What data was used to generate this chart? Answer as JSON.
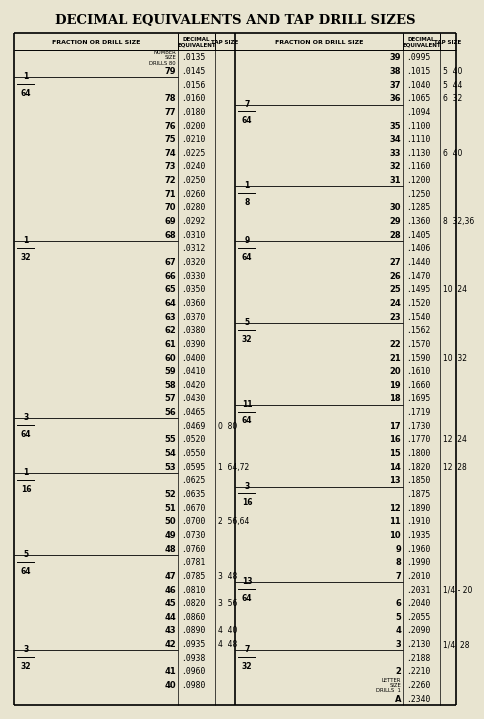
{
  "title": "DECIMAL EQUIVALENTS AND TAP DRILL SIZES",
  "background": "#e8e4d0",
  "left_rows": [
    {
      "fraction": "",
      "number": "NUMBER\nSIZE\nDRILLS 80",
      "decimal": ".0135",
      "tap": "",
      "is_label": true
    },
    {
      "fraction": "",
      "number": "79",
      "decimal": ".0145",
      "tap": "",
      "is_label": false
    },
    {
      "fraction": "1\n64",
      "number": "",
      "decimal": ".0156",
      "tap": "",
      "is_label": false
    },
    {
      "fraction": "",
      "number": "78",
      "decimal": ".0160",
      "tap": "",
      "is_label": false
    },
    {
      "fraction": "",
      "number": "77",
      "decimal": ".0180",
      "tap": "",
      "is_label": false
    },
    {
      "fraction": "",
      "number": "76",
      "decimal": ".0200",
      "tap": "",
      "is_label": false
    },
    {
      "fraction": "",
      "number": "75",
      "decimal": ".0210",
      "tap": "",
      "is_label": false
    },
    {
      "fraction": "",
      "number": "74",
      "decimal": ".0225",
      "tap": "",
      "is_label": false
    },
    {
      "fraction": "",
      "number": "73",
      "decimal": ".0240",
      "tap": "",
      "is_label": false
    },
    {
      "fraction": "",
      "number": "72",
      "decimal": ".0250",
      "tap": "",
      "is_label": false
    },
    {
      "fraction": "",
      "number": "71",
      "decimal": ".0260",
      "tap": "",
      "is_label": false
    },
    {
      "fraction": "",
      "number": "70",
      "decimal": ".0280",
      "tap": "",
      "is_label": false
    },
    {
      "fraction": "",
      "number": "69",
      "decimal": ".0292",
      "tap": "",
      "is_label": false
    },
    {
      "fraction": "",
      "number": "68",
      "decimal": ".0310",
      "tap": "",
      "is_label": false
    },
    {
      "fraction": "1\n32",
      "number": "",
      "decimal": ".0312",
      "tap": "",
      "is_label": false
    },
    {
      "fraction": "",
      "number": "67",
      "decimal": ".0320",
      "tap": "",
      "is_label": false
    },
    {
      "fraction": "",
      "number": "66",
      "decimal": ".0330",
      "tap": "",
      "is_label": false
    },
    {
      "fraction": "",
      "number": "65",
      "decimal": ".0350",
      "tap": "",
      "is_label": false
    },
    {
      "fraction": "",
      "number": "64",
      "decimal": ".0360",
      "tap": "",
      "is_label": false
    },
    {
      "fraction": "",
      "number": "63",
      "decimal": ".0370",
      "tap": "",
      "is_label": false
    },
    {
      "fraction": "",
      "number": "62",
      "decimal": ".0380",
      "tap": "",
      "is_label": false
    },
    {
      "fraction": "",
      "number": "61",
      "decimal": ".0390",
      "tap": "",
      "is_label": false
    },
    {
      "fraction": "",
      "number": "60",
      "decimal": ".0400",
      "tap": "",
      "is_label": false
    },
    {
      "fraction": "",
      "number": "59",
      "decimal": ".0410",
      "tap": "",
      "is_label": false
    },
    {
      "fraction": "",
      "number": "58",
      "decimal": ".0420",
      "tap": "",
      "is_label": false
    },
    {
      "fraction": "",
      "number": "57",
      "decimal": ".0430",
      "tap": "",
      "is_label": false
    },
    {
      "fraction": "",
      "number": "56",
      "decimal": ".0465",
      "tap": "",
      "is_label": false
    },
    {
      "fraction": "3\n64",
      "number": "",
      "decimal": ".0469",
      "tap": "0  80",
      "is_label": false
    },
    {
      "fraction": "",
      "number": "55",
      "decimal": ".0520",
      "tap": "",
      "is_label": false
    },
    {
      "fraction": "",
      "number": "54",
      "decimal": ".0550",
      "tap": "",
      "is_label": false
    },
    {
      "fraction": "",
      "number": "53",
      "decimal": ".0595",
      "tap": "1  64,72",
      "is_label": false
    },
    {
      "fraction": "1\n16",
      "number": "",
      "decimal": ".0625",
      "tap": "",
      "is_label": false
    },
    {
      "fraction": "",
      "number": "52",
      "decimal": ".0635",
      "tap": "",
      "is_label": false
    },
    {
      "fraction": "",
      "number": "51",
      "decimal": ".0670",
      "tap": "",
      "is_label": false
    },
    {
      "fraction": "",
      "number": "50",
      "decimal": ".0700",
      "tap": "2  56,64",
      "is_label": false
    },
    {
      "fraction": "",
      "number": "49",
      "decimal": ".0730",
      "tap": "",
      "is_label": false
    },
    {
      "fraction": "",
      "number": "48",
      "decimal": ".0760",
      "tap": "",
      "is_label": false
    },
    {
      "fraction": "5\n64",
      "number": "",
      "decimal": ".0781",
      "tap": "",
      "is_label": false
    },
    {
      "fraction": "",
      "number": "47",
      "decimal": ".0785",
      "tap": "3  48",
      "is_label": false
    },
    {
      "fraction": "",
      "number": "46",
      "decimal": ".0810",
      "tap": "",
      "is_label": false
    },
    {
      "fraction": "",
      "number": "45",
      "decimal": ".0820",
      "tap": "3  56",
      "is_label": false
    },
    {
      "fraction": "",
      "number": "44",
      "decimal": ".0860",
      "tap": "",
      "is_label": false
    },
    {
      "fraction": "",
      "number": "43",
      "decimal": ".0890",
      "tap": "4  40",
      "is_label": false
    },
    {
      "fraction": "",
      "number": "42",
      "decimal": ".0935",
      "tap": "4  48",
      "is_label": false
    },
    {
      "fraction": "3\n32",
      "number": "",
      "decimal": ".0938",
      "tap": "",
      "is_label": false
    },
    {
      "fraction": "",
      "number": "41",
      "decimal": ".0960",
      "tap": "",
      "is_label": false
    },
    {
      "fraction": "",
      "number": "40",
      "decimal": ".0980",
      "tap": "",
      "is_label": false
    }
  ],
  "right_rows": [
    {
      "fraction": "",
      "number": "39",
      "decimal": ".0995",
      "tap": "",
      "is_label": false
    },
    {
      "fraction": "",
      "number": "38",
      "decimal": ".1015",
      "tap": "5  40",
      "is_label": false
    },
    {
      "fraction": "",
      "number": "37",
      "decimal": ".1040",
      "tap": "5  44",
      "is_label": false
    },
    {
      "fraction": "",
      "number": "36",
      "decimal": ".1065",
      "tap": "6  32",
      "is_label": false
    },
    {
      "fraction": "7\n64",
      "number": "",
      "decimal": ".1094",
      "tap": "",
      "is_label": false
    },
    {
      "fraction": "",
      "number": "35",
      "decimal": ".1100",
      "tap": "",
      "is_label": false
    },
    {
      "fraction": "",
      "number": "34",
      "decimal": ".1110",
      "tap": "",
      "is_label": false
    },
    {
      "fraction": "",
      "number": "33",
      "decimal": ".1130",
      "tap": "6  40",
      "is_label": false
    },
    {
      "fraction": "",
      "number": "32",
      "decimal": ".1160",
      "tap": "",
      "is_label": false
    },
    {
      "fraction": "",
      "number": "31",
      "decimal": ".1200",
      "tap": "",
      "is_label": false
    },
    {
      "fraction": "1\n8",
      "number": "",
      "decimal": ".1250",
      "tap": "",
      "is_label": false
    },
    {
      "fraction": "",
      "number": "30",
      "decimal": ".1285",
      "tap": "",
      "is_label": false
    },
    {
      "fraction": "",
      "number": "29",
      "decimal": ".1360",
      "tap": "8  32,36",
      "is_label": false
    },
    {
      "fraction": "",
      "number": "28",
      "decimal": ".1405",
      "tap": "",
      "is_label": false
    },
    {
      "fraction": "9\n64",
      "number": "",
      "decimal": ".1406",
      "tap": "",
      "is_label": false
    },
    {
      "fraction": "",
      "number": "27",
      "decimal": ".1440",
      "tap": "",
      "is_label": false
    },
    {
      "fraction": "",
      "number": "26",
      "decimal": ".1470",
      "tap": "",
      "is_label": false
    },
    {
      "fraction": "",
      "number": "25",
      "decimal": ".1495",
      "tap": "10  24",
      "is_label": false
    },
    {
      "fraction": "",
      "number": "24",
      "decimal": ".1520",
      "tap": "",
      "is_label": false
    },
    {
      "fraction": "",
      "number": "23",
      "decimal": ".1540",
      "tap": "",
      "is_label": false
    },
    {
      "fraction": "5\n32",
      "number": "",
      "decimal": ".1562",
      "tap": "",
      "is_label": false
    },
    {
      "fraction": "",
      "number": "22",
      "decimal": ".1570",
      "tap": "",
      "is_label": false
    },
    {
      "fraction": "",
      "number": "21",
      "decimal": ".1590",
      "tap": "10  32",
      "is_label": false
    },
    {
      "fraction": "",
      "number": "20",
      "decimal": ".1610",
      "tap": "",
      "is_label": false
    },
    {
      "fraction": "",
      "number": "19",
      "decimal": ".1660",
      "tap": "",
      "is_label": false
    },
    {
      "fraction": "",
      "number": "18",
      "decimal": ".1695",
      "tap": "",
      "is_label": false
    },
    {
      "fraction": "11\n64",
      "number": "",
      "decimal": ".1719",
      "tap": "",
      "is_label": false
    },
    {
      "fraction": "",
      "number": "17",
      "decimal": ".1730",
      "tap": "",
      "is_label": false
    },
    {
      "fraction": "",
      "number": "16",
      "decimal": ".1770",
      "tap": "12  24",
      "is_label": false
    },
    {
      "fraction": "",
      "number": "15",
      "decimal": ".1800",
      "tap": "",
      "is_label": false
    },
    {
      "fraction": "",
      "number": "14",
      "decimal": ".1820",
      "tap": "12  28",
      "is_label": false
    },
    {
      "fraction": "",
      "number": "13",
      "decimal": ".1850",
      "tap": "",
      "is_label": false
    },
    {
      "fraction": "3\n16",
      "number": "",
      "decimal": ".1875",
      "tap": "",
      "is_label": false
    },
    {
      "fraction": "",
      "number": "12",
      "decimal": ".1890",
      "tap": "",
      "is_label": false
    },
    {
      "fraction": "",
      "number": "11",
      "decimal": ".1910",
      "tap": "",
      "is_label": false
    },
    {
      "fraction": "",
      "number": "10",
      "decimal": ".1935",
      "tap": "",
      "is_label": false
    },
    {
      "fraction": "",
      "number": "9",
      "decimal": ".1960",
      "tap": "",
      "is_label": false
    },
    {
      "fraction": "",
      "number": "8",
      "decimal": ".1990",
      "tap": "",
      "is_label": false
    },
    {
      "fraction": "",
      "number": "7",
      "decimal": ".2010",
      "tap": "",
      "is_label": false
    },
    {
      "fraction": "13\n64",
      "number": "",
      "decimal": ".2031",
      "tap": "1/4 - 20",
      "is_label": false
    },
    {
      "fraction": "",
      "number": "6",
      "decimal": ".2040",
      "tap": "",
      "is_label": false
    },
    {
      "fraction": "",
      "number": "5",
      "decimal": ".2055",
      "tap": "",
      "is_label": false
    },
    {
      "fraction": "",
      "number": "4",
      "decimal": ".2090",
      "tap": "",
      "is_label": false
    },
    {
      "fraction": "",
      "number": "3",
      "decimal": ".2130",
      "tap": "1/4  28",
      "is_label": false
    },
    {
      "fraction": "7\n32",
      "number": "",
      "decimal": ".2188",
      "tap": "",
      "is_label": false
    },
    {
      "fraction": "",
      "number": "2",
      "decimal": ".2210",
      "tap": "",
      "is_label": false
    },
    {
      "fraction": "",
      "number": "LETTER\nSIZE\nDRILLS  1",
      "decimal": ".2260",
      "tap": "",
      "is_label": true
    },
    {
      "fraction": "",
      "number": "A",
      "decimal": ".2340",
      "tap": "",
      "is_label": false
    }
  ]
}
